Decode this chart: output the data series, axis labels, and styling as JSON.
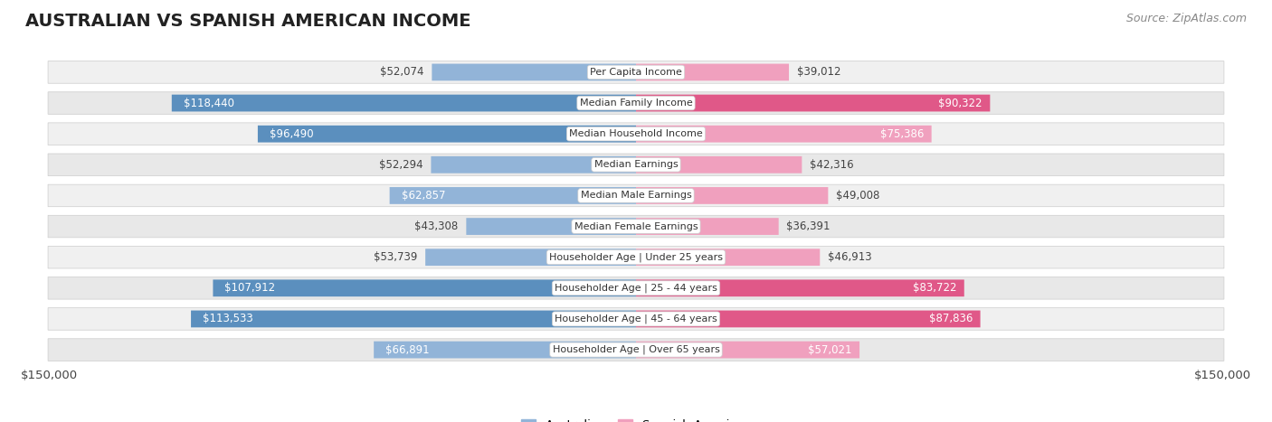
{
  "title": "AUSTRALIAN VS SPANISH AMERICAN INCOME",
  "source": "Source: ZipAtlas.com",
  "categories": [
    "Per Capita Income",
    "Median Family Income",
    "Median Household Income",
    "Median Earnings",
    "Median Male Earnings",
    "Median Female Earnings",
    "Householder Age | Under 25 years",
    "Householder Age | 25 - 44 years",
    "Householder Age | 45 - 64 years",
    "Householder Age | Over 65 years"
  ],
  "australian_values": [
    52074,
    118440,
    96490,
    52294,
    62857,
    43308,
    53739,
    107912,
    113533,
    66891
  ],
  "spanish_values": [
    39012,
    90322,
    75386,
    42316,
    49008,
    36391,
    46913,
    83722,
    87836,
    57021
  ],
  "australian_labels": [
    "$52,074",
    "$118,440",
    "$96,490",
    "$52,294",
    "$62,857",
    "$43,308",
    "$53,739",
    "$107,912",
    "$113,533",
    "$66,891"
  ],
  "spanish_labels": [
    "$39,012",
    "$90,322",
    "$75,386",
    "$42,316",
    "$49,008",
    "$36,391",
    "$46,913",
    "$83,722",
    "$87,836",
    "$57,021"
  ],
  "max_value": 150000,
  "australian_color_light": "#92b4d8",
  "australian_color_dark": "#5b8fbe",
  "spanish_color_light": "#f0a0be",
  "spanish_color_dark": "#e05888",
  "background_color": "#ffffff",
  "row_bg_even": "#f0f0f0",
  "row_bg_odd": "#e8e8e8",
  "row_border_color": "#cccccc",
  "label_color_inside": "#ffffff",
  "label_color_outside": "#444444",
  "label_fontsize": 8.5,
  "cat_fontsize": 8.0,
  "title_fontsize": 14,
  "source_fontsize": 9,
  "legend_australian": "Australian",
  "legend_spanish": "Spanish American",
  "x_label_left": "$150,000",
  "x_label_right": "$150,000",
  "inside_threshold": 55000
}
